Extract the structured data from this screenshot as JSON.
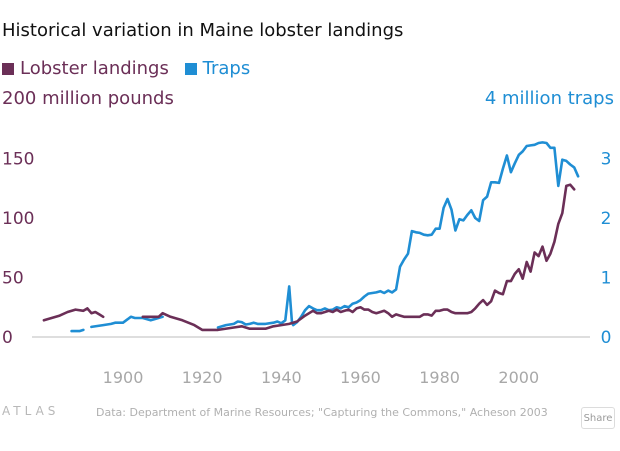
{
  "chart_data": {
    "type": "line",
    "title": "Historical variation in Maine lobster landings",
    "left_axis_label": "200 million pounds",
    "right_axis_label": "4 million traps",
    "x_ticks": [
      "1900",
      "1920",
      "1940",
      "1960",
      "1980",
      "2000"
    ],
    "x_range": [
      1877,
      2018
    ],
    "left_ticks": [
      "0",
      "50",
      "100",
      "150"
    ],
    "left_range": [
      0,
      200
    ],
    "right_ticks": [
      "0",
      "1",
      "2",
      "3"
    ],
    "right_range": [
      0,
      4
    ],
    "grid": false,
    "legend_position": "top-left",
    "series": [
      {
        "name": "Lobster landings",
        "axis": "left",
        "color": "#6b2f57",
        "points": [
          [
            1880,
            14
          ],
          [
            1884,
            18
          ],
          [
            1886,
            21
          ],
          [
            1888,
            23
          ],
          [
            1890,
            22
          ],
          [
            1891,
            24
          ],
          [
            1892,
            20
          ],
          [
            1893,
            21
          ],
          [
            1894,
            19
          ],
          [
            1895,
            17
          ],
          null,
          [
            1905,
            17
          ],
          [
            1906,
            17
          ],
          [
            1908,
            17
          ],
          [
            1909,
            17
          ],
          [
            1910,
            20
          ],
          [
            1912,
            17
          ],
          [
            1915,
            14
          ],
          [
            1918,
            10
          ],
          [
            1920,
            6
          ],
          [
            1924,
            6
          ],
          [
            1928,
            8
          ],
          [
            1930,
            9
          ],
          [
            1932,
            7
          ],
          [
            1934,
            7
          ],
          [
            1936,
            7
          ],
          [
            1938,
            9
          ],
          [
            1940,
            10
          ],
          [
            1942,
            11
          ],
          [
            1944,
            13
          ],
          [
            1946,
            18
          ],
          [
            1948,
            22
          ],
          [
            1949,
            20
          ],
          [
            1950,
            20
          ],
          [
            1951,
            21
          ],
          [
            1952,
            22
          ],
          [
            1953,
            21
          ],
          [
            1954,
            23
          ],
          [
            1955,
            21
          ],
          [
            1956,
            22
          ],
          [
            1957,
            23
          ],
          [
            1958,
            21
          ],
          [
            1959,
            24
          ],
          [
            1960,
            25
          ],
          [
            1961,
            23
          ],
          [
            1962,
            23
          ],
          [
            1963,
            21
          ],
          [
            1964,
            20
          ],
          [
            1965,
            21
          ],
          [
            1966,
            22
          ],
          [
            1967,
            20
          ],
          [
            1968,
            17
          ],
          [
            1969,
            19
          ],
          [
            1970,
            18
          ],
          [
            1971,
            17
          ],
          [
            1972,
            17
          ],
          [
            1973,
            17
          ],
          [
            1974,
            17
          ],
          [
            1975,
            17
          ],
          [
            1976,
            19
          ],
          [
            1977,
            19
          ],
          [
            1978,
            18
          ],
          [
            1979,
            22
          ],
          [
            1980,
            22
          ],
          [
            1981,
            23
          ],
          [
            1982,
            23
          ],
          [
            1983,
            21
          ],
          [
            1984,
            20
          ],
          [
            1985,
            20
          ],
          [
            1986,
            20
          ],
          [
            1987,
            20
          ],
          [
            1988,
            21
          ],
          [
            1989,
            24
          ],
          [
            1990,
            28
          ],
          [
            1991,
            31
          ],
          [
            1992,
            27
          ],
          [
            1993,
            30
          ],
          [
            1994,
            39
          ],
          [
            1995,
            37
          ],
          [
            1996,
            36
          ],
          [
            1997,
            47
          ],
          [
            1998,
            47
          ],
          [
            1999,
            53
          ],
          [
            2000,
            57
          ],
          [
            2001,
            49
          ],
          [
            2002,
            63
          ],
          [
            2003,
            55
          ],
          [
            2004,
            71
          ],
          [
            2005,
            68
          ],
          [
            2006,
            76
          ],
          [
            2007,
            64
          ],
          [
            2008,
            70
          ],
          [
            2009,
            80
          ],
          [
            2010,
            95
          ],
          [
            2011,
            104
          ],
          [
            2012,
            127
          ],
          [
            2013,
            128
          ],
          [
            2014,
            124
          ]
        ]
      },
      {
        "name": "Traps",
        "axis": "right",
        "color": "#1f8ed4",
        "points": [
          [
            1887,
            0.1
          ],
          [
            1889,
            0.1
          ],
          [
            1890,
            0.12
          ],
          null,
          [
            1892,
            0.17
          ],
          [
            1895,
            0.2
          ],
          [
            1897,
            0.22
          ],
          [
            1898,
            0.24
          ],
          [
            1900,
            0.24
          ],
          [
            1901,
            0.29
          ],
          [
            1902,
            0.34
          ],
          [
            1903,
            0.32
          ],
          [
            1905,
            0.32
          ],
          [
            1907,
            0.28
          ],
          [
            1908,
            0.3
          ],
          [
            1910,
            0.34
          ],
          null,
          [
            1924,
            0.16
          ],
          [
            1926,
            0.2
          ],
          [
            1928,
            0.22
          ],
          [
            1929,
            0.26
          ],
          [
            1930,
            0.25
          ],
          [
            1931,
            0.21
          ],
          [
            1932,
            0.22
          ],
          [
            1933,
            0.24
          ],
          [
            1934,
            0.22
          ],
          [
            1936,
            0.22
          ],
          [
            1938,
            0.24
          ],
          [
            1939,
            0.26
          ],
          [
            1940,
            0.23
          ],
          [
            1941,
            0.28
          ],
          [
            1942,
            0.85
          ],
          [
            1942.7,
            0.24
          ],
          [
            1943,
            0.2
          ],
          [
            1944,
            0.25
          ],
          [
            1945,
            0.34
          ],
          [
            1946,
            0.45
          ],
          [
            1947,
            0.52
          ],
          [
            1948,
            0.48
          ],
          [
            1949,
            0.45
          ],
          [
            1950,
            0.45
          ],
          [
            1951,
            0.48
          ],
          [
            1952,
            0.45
          ],
          [
            1953,
            0.46
          ],
          [
            1954,
            0.5
          ],
          [
            1955,
            0.48
          ],
          [
            1956,
            0.52
          ],
          [
            1957,
            0.5
          ],
          [
            1958,
            0.56
          ],
          [
            1959,
            0.58
          ],
          [
            1960,
            0.62
          ],
          [
            1961,
            0.68
          ],
          [
            1962,
            0.73
          ],
          [
            1963,
            0.74
          ],
          [
            1964,
            0.75
          ],
          [
            1965,
            0.77
          ],
          [
            1966,
            0.74
          ],
          [
            1967,
            0.78
          ],
          [
            1968,
            0.75
          ],
          [
            1969,
            0.8
          ],
          [
            1970,
            1.18
          ],
          [
            1971,
            1.3
          ],
          [
            1972,
            1.4
          ],
          [
            1973,
            1.78
          ],
          [
            1974,
            1.76
          ],
          [
            1975,
            1.75
          ],
          [
            1976,
            1.72
          ],
          [
            1977,
            1.71
          ],
          [
            1978,
            1.72
          ],
          [
            1979,
            1.82
          ],
          [
            1980,
            1.82
          ],
          [
            1981,
            2.17
          ],
          [
            1982,
            2.32
          ],
          [
            1983,
            2.14
          ],
          [
            1984,
            1.79
          ],
          [
            1985,
            1.98
          ],
          [
            1986,
            1.96
          ],
          [
            1987,
            2.05
          ],
          [
            1988,
            2.13
          ],
          [
            1989,
            2.0
          ],
          [
            1990,
            1.95
          ],
          [
            1991,
            2.3
          ],
          [
            1992,
            2.36
          ],
          [
            1993,
            2.6
          ],
          [
            1994,
            2.6
          ],
          [
            1995,
            2.59
          ],
          [
            1996,
            2.83
          ],
          [
            1997,
            3.05
          ],
          [
            1998,
            2.77
          ],
          [
            1999,
            2.92
          ],
          [
            2000,
            3.06
          ],
          [
            2001,
            3.12
          ],
          [
            2002,
            3.21
          ],
          [
            2003,
            3.22
          ],
          [
            2004,
            3.23
          ],
          [
            2005,
            3.26
          ],
          [
            2006,
            3.27
          ],
          [
            2007,
            3.26
          ],
          [
            2008,
            3.18
          ],
          [
            2009,
            3.18
          ],
          [
            2010,
            2.54
          ],
          [
            2011,
            2.98
          ],
          [
            2012,
            2.96
          ],
          [
            2013,
            2.9
          ],
          [
            2014,
            2.85
          ],
          [
            2015,
            2.7
          ]
        ]
      }
    ]
  },
  "footer": {
    "logo": "ATLAS",
    "source": "Data:  Department of Marine Resources; \"Capturing the Commons,\" Acheson 2003",
    "share_label": "Share"
  }
}
